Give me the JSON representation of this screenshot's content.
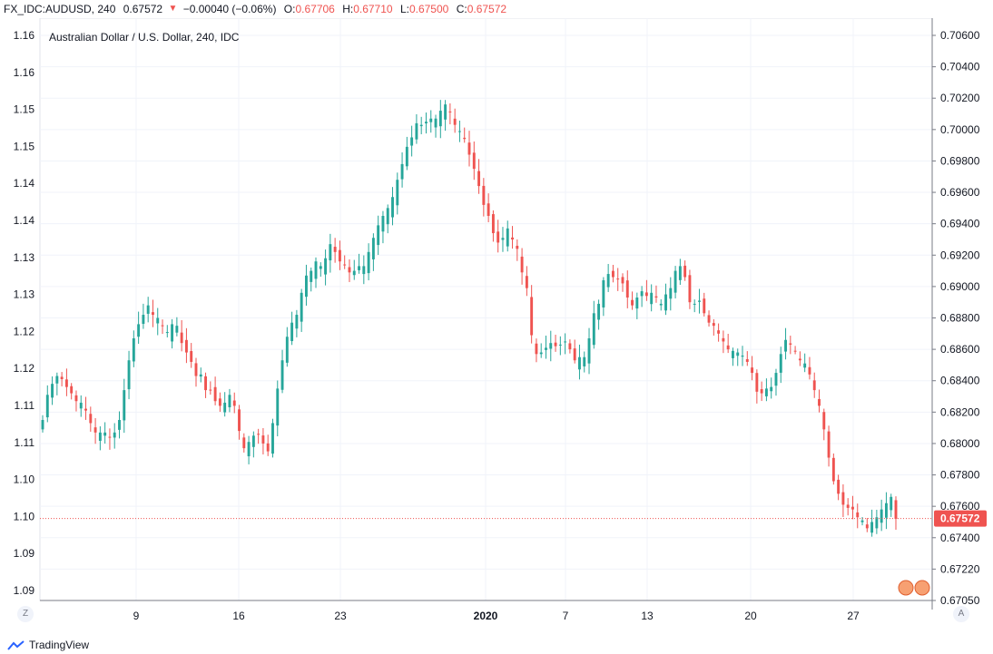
{
  "header": {
    "symbol": "FX_IDC:AUDUSD, 240",
    "last": "0.67572",
    "change": "−0.00040 (−0.06%)",
    "o_label": "O:",
    "o_value": "0.67706",
    "h_label": "H:",
    "h_value": "0.67710",
    "l_label": "L:",
    "l_value": "0.67500",
    "c_label": "C:",
    "c_value": "0.67572"
  },
  "footer": {
    "brand": "TradingView"
  },
  "controls": {
    "left": "Z",
    "right": "A"
  },
  "chart_data": {
    "type": "candlestick",
    "title": "Australian Dollar / U.S. Dollar, 240, IDC",
    "left_axis_ticks": [
      "1.16",
      "1.16",
      "1.15",
      "1.15",
      "1.14",
      "1.14",
      "1.13",
      "1.13",
      "1.12",
      "1.12",
      "1.11",
      "1.11",
      "1.10",
      "1.10",
      "1.09",
      "1.09"
    ],
    "right_axis_ticks": [
      "0.70600",
      "0.70400",
      "0.70200",
      "0.70000",
      "0.69800",
      "0.69600",
      "0.69400",
      "0.69200",
      "0.69000",
      "0.68800",
      "0.68600",
      "0.68400",
      "0.68200",
      "0.68000",
      "0.67800",
      "0.67600",
      "0.67400",
      "0.67220",
      "0.67050"
    ],
    "x_ticks": [
      "9",
      "16",
      "23",
      "2020",
      "7",
      "13",
      "20",
      "27"
    ],
    "ylim": [
      0.6705,
      0.7065
    ],
    "last_price": 0.67572,
    "last_price_label": "0.67572",
    "up_color": "#26a69a",
    "down_color": "#ef5350",
    "grid": true,
    "close": [
      0.682,
      0.6836,
      0.6843,
      0.6848,
      0.6846,
      0.6841,
      0.6837,
      0.6832,
      0.6831,
      0.6826,
      0.6818,
      0.6812,
      0.6812,
      0.6812,
      0.6809,
      0.6812,
      0.682,
      0.6839,
      0.6858,
      0.6872,
      0.6881,
      0.6887,
      0.6893,
      0.6887,
      0.6885,
      0.688,
      0.6876,
      0.6881,
      0.688,
      0.6869,
      0.6863,
      0.6857,
      0.6848,
      0.6849,
      0.6839,
      0.6839,
      0.6832,
      0.6829,
      0.6831,
      0.6836,
      0.6829,
      0.6813,
      0.6802,
      0.6806,
      0.681,
      0.6811,
      0.6805,
      0.68,
      0.6818,
      0.684,
      0.6858,
      0.6873,
      0.6882,
      0.6887,
      0.6901,
      0.6912,
      0.6915,
      0.6921,
      0.6918,
      0.6923,
      0.6932,
      0.6927,
      0.6921,
      0.6919,
      0.6914,
      0.6915,
      0.6918,
      0.6918,
      0.6927,
      0.6936,
      0.6944,
      0.695,
      0.6955,
      0.6962,
      0.6973,
      0.6983,
      0.6994,
      0.7,
      0.7009,
      0.7008,
      0.701,
      0.7012,
      0.7012,
      0.7017,
      0.7021,
      0.7016,
      0.7008,
      0.7004,
      0.6999,
      0.6989,
      0.698,
      0.6969,
      0.6957,
      0.695,
      0.6939,
      0.6933,
      0.6936,
      0.6942,
      0.6935,
      0.6929,
      0.6914,
      0.6904,
      0.6874,
      0.6862,
      0.6863,
      0.6866,
      0.6869,
      0.6867,
      0.6868,
      0.687,
      0.6865,
      0.6858,
      0.686,
      0.686,
      0.6872,
      0.6888,
      0.6894,
      0.6909,
      0.6913,
      0.6911,
      0.691,
      0.6907,
      0.6898,
      0.6893,
      0.6898,
      0.6902,
      0.6899,
      0.6901,
      0.6898,
      0.6894,
      0.69,
      0.6904,
      0.6915,
      0.6918,
      0.6911,
      0.6895,
      0.6894,
      0.6896,
      0.6888,
      0.6882,
      0.688,
      0.6875,
      0.687,
      0.6865,
      0.6864,
      0.6863,
      0.6861,
      0.6857,
      0.685,
      0.6838,
      0.6837,
      0.684,
      0.6841,
      0.685,
      0.6862,
      0.6871,
      0.6868,
      0.6864,
      0.6858,
      0.6856,
      0.6849,
      0.6839,
      0.6829,
      0.6814,
      0.6796,
      0.6781,
      0.6773,
      0.6766,
      0.6764,
      0.6763,
      0.6758,
      0.6756,
      0.6751,
      0.6755,
      0.6758,
      0.6763,
      0.6767,
      0.6771,
      0.6757
    ]
  }
}
